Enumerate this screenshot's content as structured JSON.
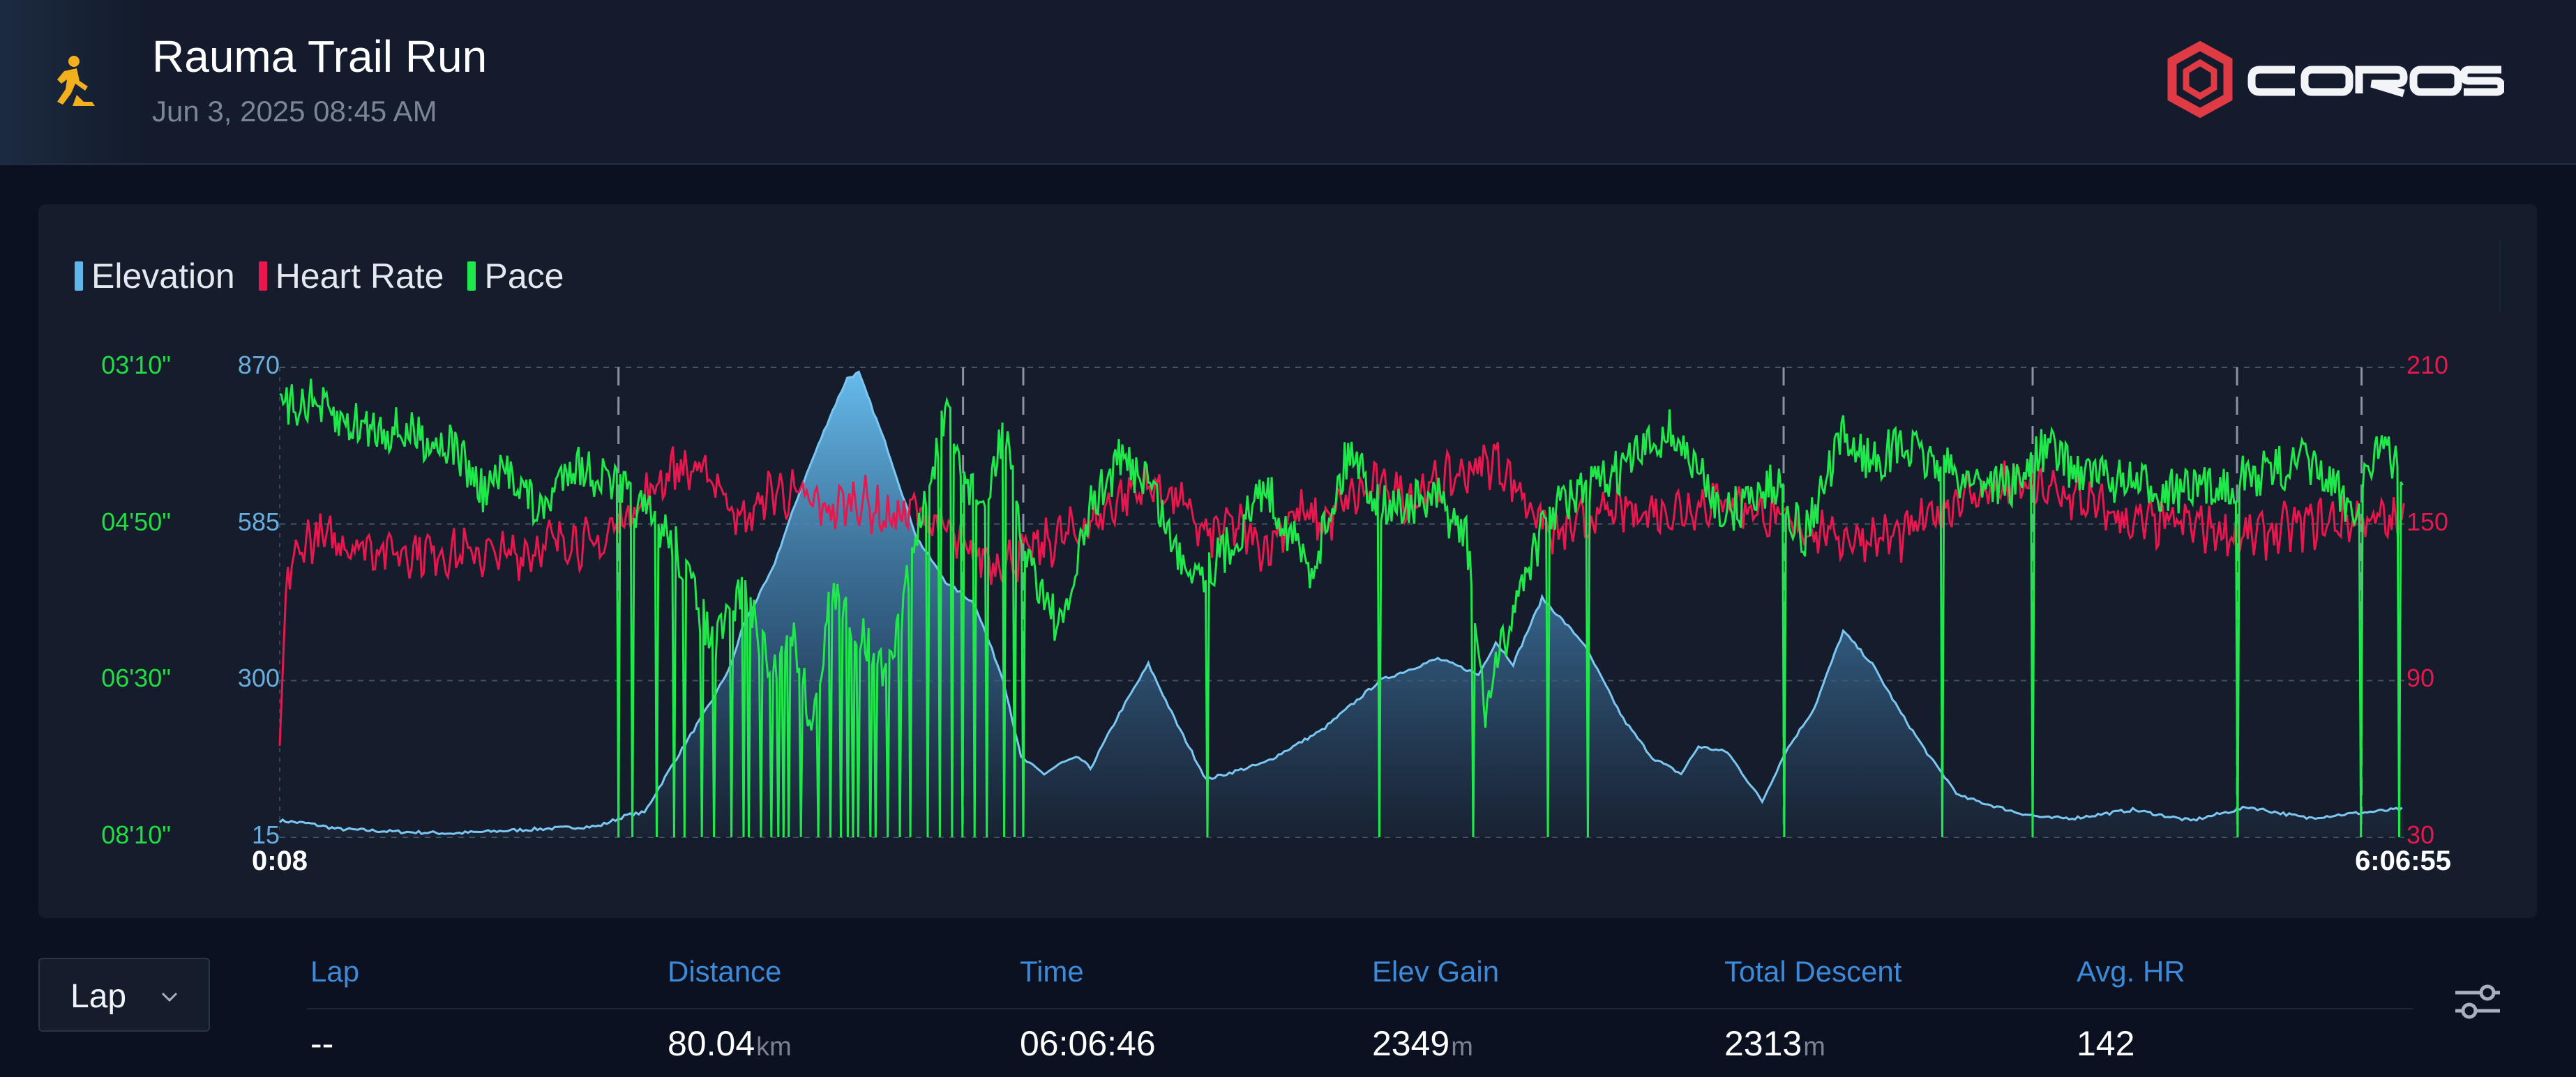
{
  "header": {
    "title": "Rauma Trail Run",
    "date": "Jun 3, 2025 08:45 AM",
    "activity_icon": "trail-run-icon",
    "brand": "COROS",
    "brand_color": "#e03a45"
  },
  "chart_data": {
    "type": "line",
    "legend": [
      {
        "name": "Elevation",
        "color": "#5fb7ec"
      },
      {
        "name": "Heart Rate",
        "color": "#e8174e"
      },
      {
        "name": "Pace",
        "color": "#1ee84a"
      }
    ],
    "x_axis": {
      "start_label": "0:08",
      "end_label": "6:06:55",
      "range_minutes": [
        0.13,
        366.9
      ]
    },
    "y_axes": {
      "elevation": {
        "ticks": [
          "870",
          "585",
          "300",
          "15"
        ],
        "range": [
          15,
          870
        ],
        "unit": "m",
        "color": "#6aaee0"
      },
      "pace": {
        "ticks": [
          "03'10\"",
          "04'50\"",
          "06'30\"",
          "08'10\""
        ],
        "range_seconds_per_km": [
          190,
          490
        ],
        "inverted": true,
        "color": "#22dd44"
      },
      "heart_rate": {
        "ticks": [
          "210",
          "150",
          "90",
          "30"
        ],
        "range": [
          30,
          210
        ],
        "color": "#e8174e"
      }
    },
    "grid": "horizontal dashed",
    "lap_markers_minutes": [
      58.5,
      118,
      128.4,
      259.7,
      302.7,
      338,
      359.5
    ],
    "series": [
      {
        "name": "Elevation",
        "x_minutes": [
          0,
          5,
          10,
          20,
          30,
          45,
          55,
          60,
          63,
          68,
          75,
          78,
          80,
          85,
          90,
          95,
          98,
          100,
          105,
          110,
          115,
          120,
          125,
          128,
          132,
          135,
          138,
          140,
          145,
          150,
          155,
          160,
          170,
          180,
          190,
          200,
          205,
          207,
          210,
          213,
          218,
          225,
          232,
          237,
          242,
          245,
          250,
          253,
          256,
          260,
          265,
          270,
          275,
          280,
          285,
          290,
          300,
          305,
          310,
          320,
          330,
          340,
          350,
          360,
          366
        ],
        "values": [
          45,
          40,
          30,
          25,
          22,
          30,
          35,
          55,
          60,
          150,
          270,
          330,
          400,
          500,
          650,
          780,
          850,
          860,
          720,
          560,
          480,
          440,
          300,
          160,
          130,
          150,
          160,
          140,
          240,
          330,
          220,
          120,
          150,
          210,
          300,
          340,
          320,
          310,
          370,
          330,
          450,
          370,
          230,
          160,
          130,
          180,
          170,
          125,
          80,
          170,
          250,
          390,
          330,
          240,
          160,
          90,
          60,
          50,
          50,
          65,
          45,
          70,
          50,
          60,
          66
        ]
      },
      {
        "name": "Heart Rate",
        "x_minutes": [
          0,
          1,
          5,
          20,
          40,
          50,
          55,
          58,
          63,
          68,
          75,
          80,
          85,
          90,
          95,
          100,
          105,
          110,
          115,
          118,
          125,
          135,
          140,
          145,
          150,
          155,
          160,
          165,
          170,
          175,
          180,
          185,
          190,
          195,
          200,
          210,
          220,
          230,
          240,
          250,
          260,
          270,
          280,
          290,
          300,
          310,
          320,
          330,
          340,
          350,
          360,
          366
        ],
        "values": [
          65,
          130,
          145,
          140,
          138,
          145,
          140,
          150,
          160,
          172,
          168,
          150,
          163,
          160,
          155,
          160,
          152,
          155,
          148,
          140,
          135,
          145,
          150,
          160,
          165,
          160,
          145,
          150,
          140,
          155,
          150,
          160,
          165,
          160,
          165,
          175,
          145,
          155,
          155,
          160,
          150,
          145,
          145,
          160,
          165,
          160,
          150,
          150,
          145,
          150,
          152,
          150
        ],
        "dips": [
          [
            5,
            70
          ],
          [
            130,
            100
          ]
        ]
      },
      {
        "name": "Pace",
        "x_minutes": [
          0,
          5,
          10,
          20,
          30,
          35,
          40,
          45,
          50,
          58,
          62,
          68,
          72,
          75,
          80,
          85,
          88,
          92,
          95,
          100,
          105,
          110,
          115,
          118,
          122,
          125,
          128,
          135,
          140,
          145,
          150,
          155,
          160,
          165,
          170,
          178,
          185,
          190,
          200,
          205,
          208,
          215,
          220,
          230,
          240,
          250,
          255,
          259,
          263,
          270,
          275,
          280,
          290,
          300,
          305,
          310,
          320,
          330,
          340,
          350,
          358,
          362,
          366
        ],
        "values_seconds_per_km": [
          220,
          210,
          225,
          230,
          240,
          270,
          255,
          285,
          250,
          265,
          280,
          300,
          340,
          370,
          330,
          390,
          350,
          420,
          335,
          355,
          390,
          300,
          220,
          260,
          280,
          225,
          300,
          360,
          280,
          250,
          260,
          310,
          320,
          300,
          265,
          320,
          240,
          280,
          275,
          300,
          410,
          320,
          280,
          260,
          230,
          285,
          270,
          265,
          300,
          235,
          250,
          240,
          260,
          265,
          240,
          255,
          265,
          270,
          260,
          250,
          280,
          240,
          255
        ],
        "spikes_to_bottom_minutes": [
          58.5,
          61,
          65,
          68,
          70,
          73,
          75,
          78,
          80,
          81,
          83,
          85,
          86,
          87,
          88,
          90,
          93,
          95,
          97,
          98,
          99,
          100,
          102,
          103,
          105,
          107,
          109,
          112,
          114,
          116,
          118,
          120,
          122,
          125,
          127,
          128.4,
          160.2,
          190,
          206,
          219,
          226,
          259.7,
          287,
          302.7,
          338,
          359.5,
          366
        ]
      }
    ]
  },
  "laps": {
    "selector_label": "Lap",
    "headers": [
      "Lap",
      "Distance",
      "Time",
      "Elev Gain",
      "Total Descent",
      "Avg. HR"
    ],
    "row": {
      "lap": "--",
      "distance": "80.04",
      "distance_unit": "km",
      "time": "06:06:46",
      "elev_gain": "2349",
      "elev_gain_unit": "m",
      "total_descent": "2313",
      "total_descent_unit": "m",
      "avg_hr": "142"
    }
  },
  "icons": [
    "trail-run-icon",
    "coros-logo",
    "chevron-down-icon",
    "sliders-icon"
  ]
}
